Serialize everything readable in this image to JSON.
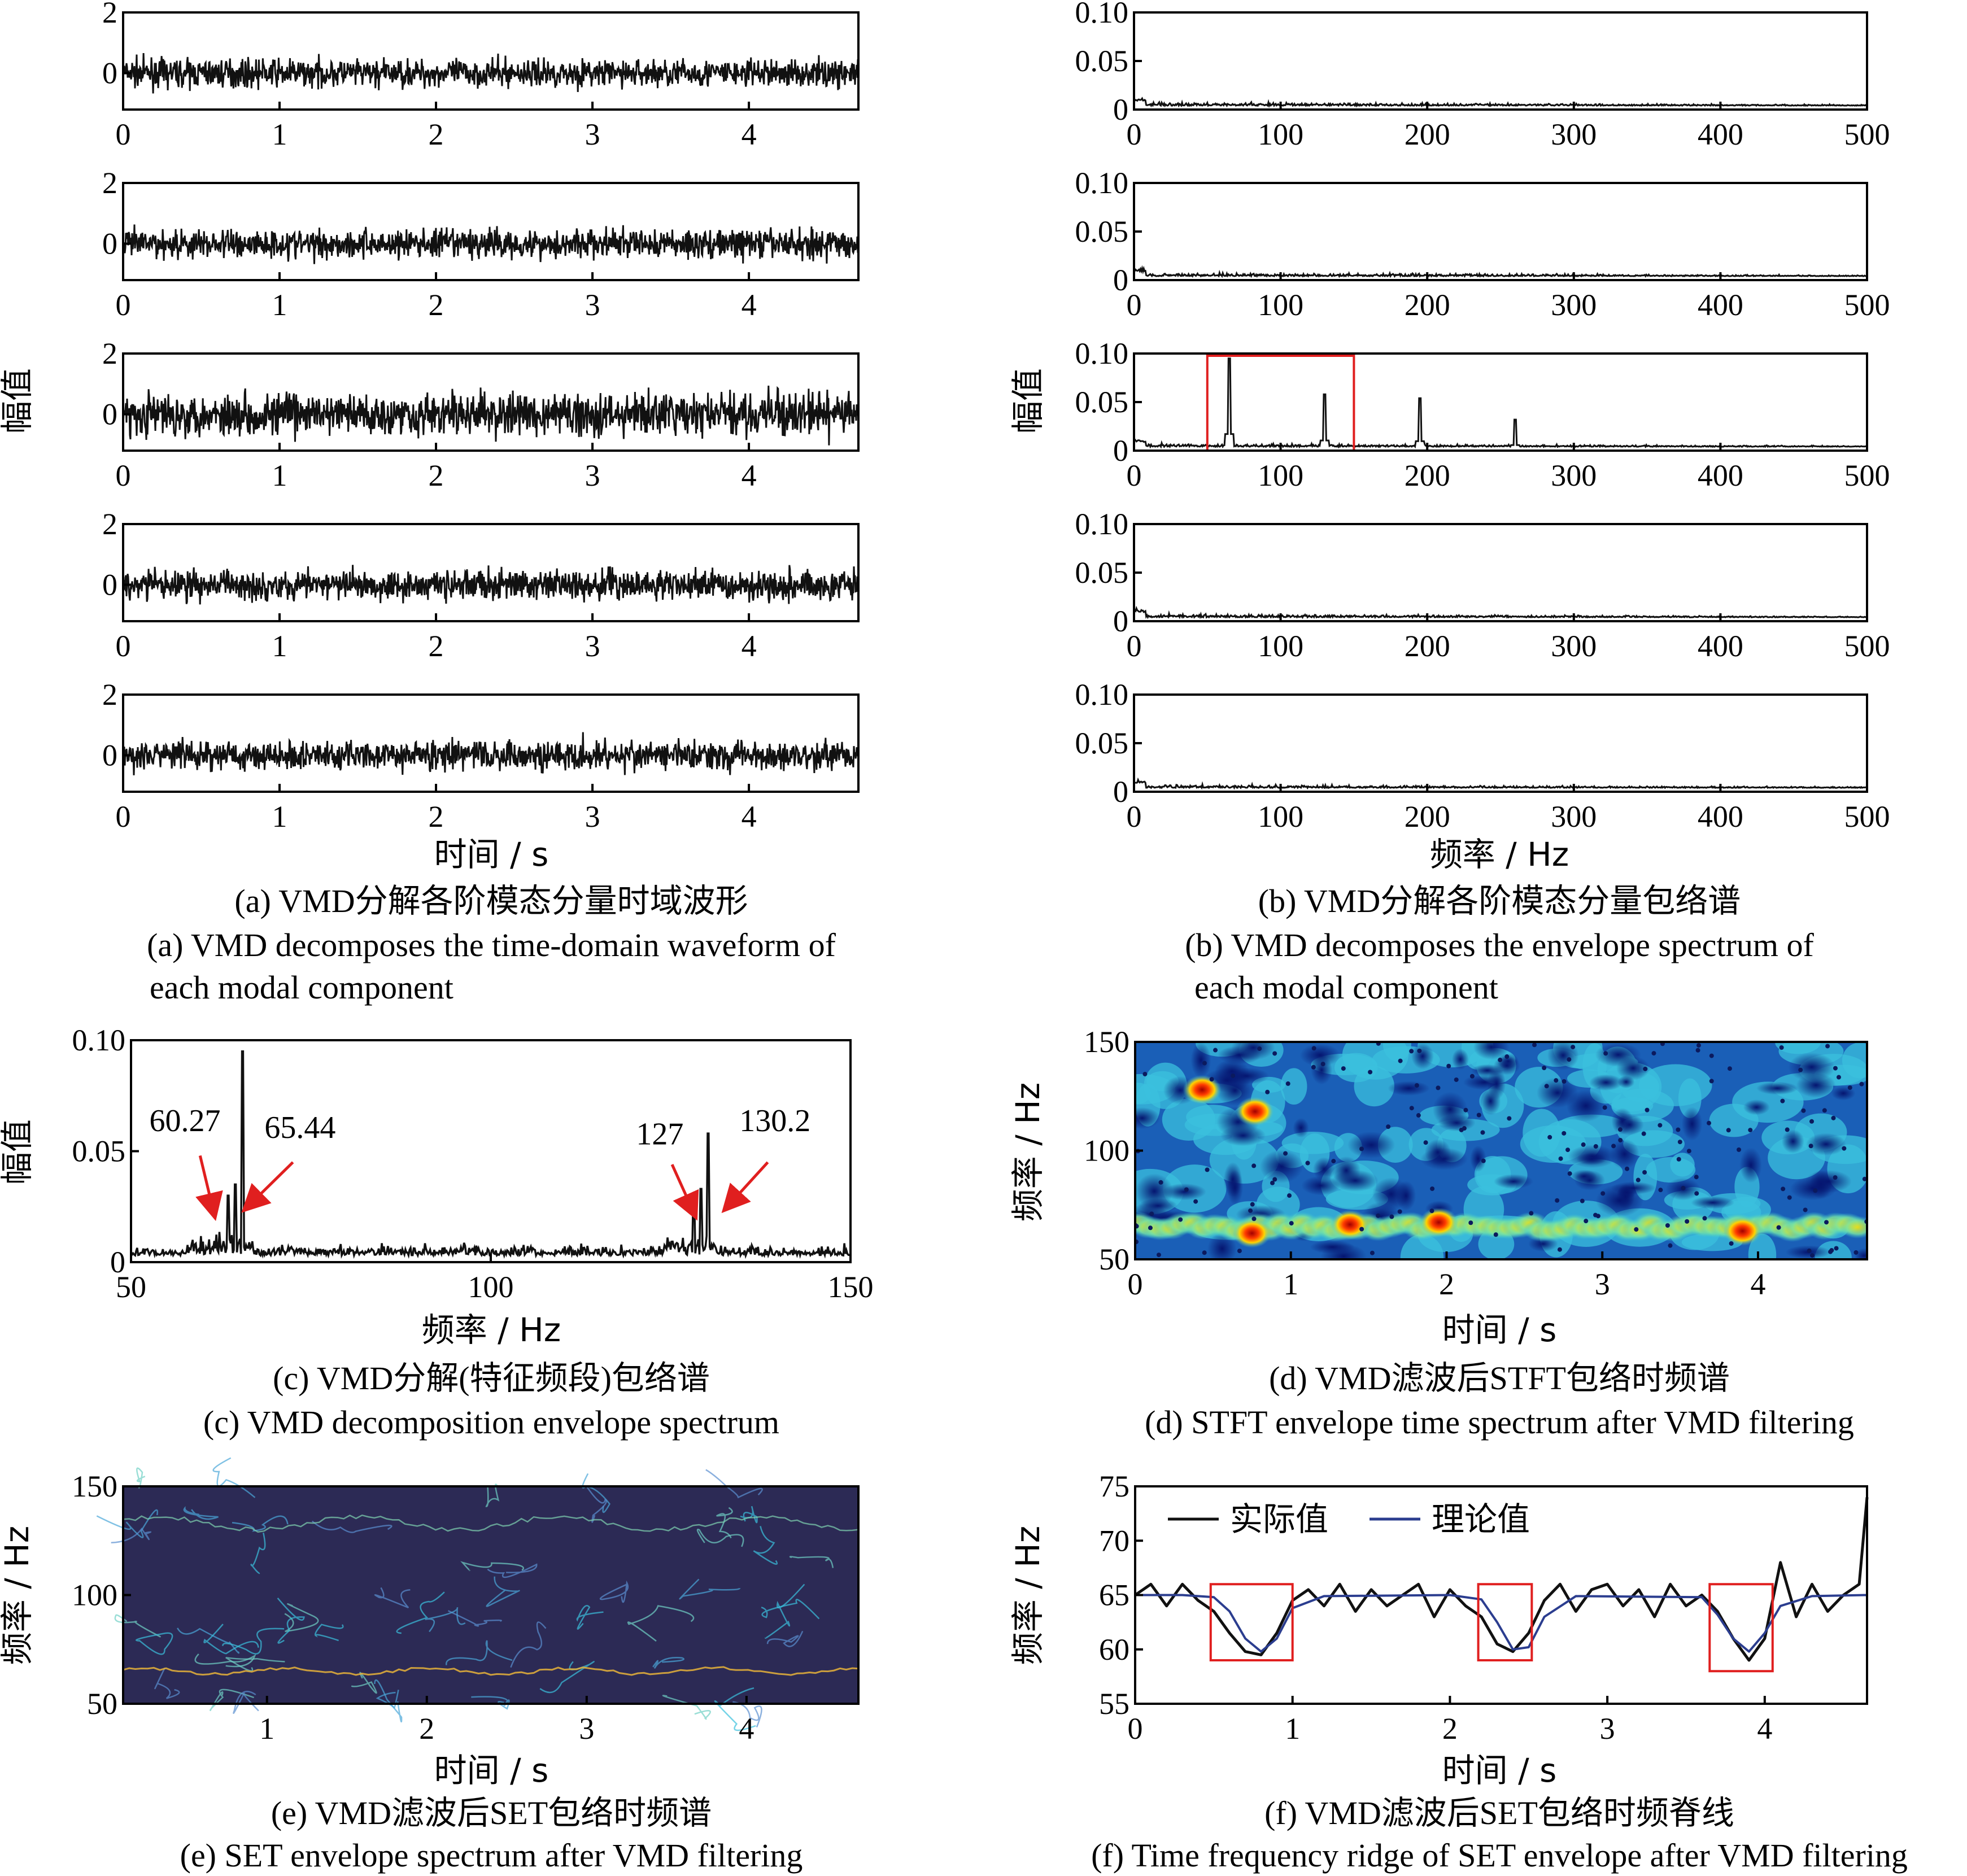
{
  "figure": {
    "a": {
      "caption_cn": "(a) VMD分解各阶模态分量时域波形",
      "caption_en": [
        "(a) VMD decomposes the time-domain waveform of",
        "each modal component"
      ],
      "ylabel": "幅值",
      "xlabel": "时间 / s"
    },
    "b": {
      "caption_cn": "(b) VMD分解各阶模态分量包络谱",
      "caption_en": [
        "(b) VMD decomposes the envelope spectrum of",
        "each modal component"
      ],
      "ylabel": "幅值",
      "xlabel": "频率 / Hz"
    },
    "c": {
      "caption_cn": "(c) VMD分解(特征频段)包络谱",
      "caption_en": [
        "(c) VMD decomposition envelope spectrum"
      ]
    },
    "d": {
      "caption_cn": "(d) VMD滤波后STFT包络时频谱",
      "caption_en": [
        "(d) STFT envelope time spectrum after VMD filtering"
      ]
    },
    "e": {
      "caption_cn": "(e) VMD滤波后SET包络时频谱",
      "caption_en": [
        "(e) SET envelope spectrum after VMD filtering"
      ]
    },
    "f": {
      "caption_cn": "(f) VMD滤波后SET包络时频脊线",
      "caption_en": [
        "(f) Time frequency ridge of SET envelope after VMD filtering"
      ]
    }
  },
  "colors": {
    "axis": "#000000",
    "signal": "#111111",
    "highlight_box": "#e01f1f",
    "arrow": "#e01f1f",
    "theory_line": "#2b3d8f",
    "set_background": "#2c2a55"
  },
  "chart_data": [
    {
      "id": "a",
      "type": "line",
      "subplots": 5,
      "description_values": {
        "x_range": [
          0,
          4.7
        ],
        "y_range": [
          -1.2,
          2.0
        ]
      },
      "xticks": [
        0,
        1,
        2,
        3,
        4
      ],
      "yticks": [
        0,
        2
      ],
      "series": [
        {
          "mode": 1,
          "amplitude": 0.65
        },
        {
          "mode": 2,
          "amplitude": 0.7
        },
        {
          "mode": 3,
          "amplitude": 1.0
        },
        {
          "mode": 4,
          "amplitude": 0.7
        },
        {
          "mode": 5,
          "amplitude": 0.7
        }
      ],
      "xlabel": "时间 / s",
      "ylabel": "幅值"
    },
    {
      "id": "b",
      "type": "line",
      "subplots": 5,
      "xlim": [
        0,
        500
      ],
      "ylim": [
        0,
        0.1
      ],
      "xticks": [
        0,
        100,
        200,
        300,
        400,
        500
      ],
      "yticks": [
        "0",
        "0.05",
        "0.10"
      ],
      "peaks_mode3": [
        {
          "x": 65,
          "y": 0.095
        },
        {
          "x": 130,
          "y": 0.058
        },
        {
          "x": 195,
          "y": 0.054
        },
        {
          "x": 260,
          "y": 0.032
        }
      ],
      "highlight_mode3": {
        "x": [
          50,
          150
        ],
        "y": [
          0,
          0.1
        ]
      },
      "noise_floor": 0.008,
      "xlabel": "频率 / Hz",
      "ylabel": "幅值"
    },
    {
      "id": "c",
      "type": "line",
      "xlim": [
        50,
        150
      ],
      "ylim": [
        0,
        0.1
      ],
      "xticks": [
        50,
        100,
        150
      ],
      "yticks": [
        "0",
        "0.05",
        "0.10"
      ],
      "peaks": [
        {
          "x": 65.44,
          "y": 0.095
        },
        {
          "x": 64.5,
          "y": 0.035
        },
        {
          "x": 63.5,
          "y": 0.03
        },
        {
          "x": 130.2,
          "y": 0.058
        },
        {
          "x": 129.2,
          "y": 0.033
        },
        {
          "x": 128.2,
          "y": 0.03
        }
      ],
      "annotations": [
        {
          "label": "60.27",
          "x": 60.27
        },
        {
          "label": "65.44",
          "x": 65.44
        },
        {
          "label": "127",
          "x": 127
        },
        {
          "label": "130.2",
          "x": 130.2
        }
      ],
      "xlabel": "频率 / Hz",
      "ylabel": "幅值"
    },
    {
      "id": "d",
      "type": "heatmap",
      "xlim": [
        0,
        4.7
      ],
      "ylim": [
        50,
        150
      ],
      "xticks": [
        0,
        1,
        2,
        3,
        4
      ],
      "yticks": [
        50,
        100,
        150
      ],
      "hot_band_hz": 65,
      "hot_spots": [
        {
          "t": 0.43,
          "f": 128
        },
        {
          "t": 0.75,
          "f": 62
        },
        {
          "t": 1.38,
          "f": 66
        },
        {
          "t": 1.95,
          "f": 67
        },
        {
          "t": 3.9,
          "f": 63
        },
        {
          "t": 0.77,
          "f": 118
        }
      ],
      "xlabel": "时间 / s",
      "ylabel": "频率 / Hz"
    },
    {
      "id": "e",
      "type": "heatmap",
      "xlim": [
        0.1,
        4.7
      ],
      "ylim": [
        50,
        150
      ],
      "xticks": [
        1,
        2,
        3,
        4
      ],
      "yticks": [
        50,
        100,
        150
      ],
      "ridge_hz": 65,
      "xlabel": "时间 / s",
      "ylabel": "频率 / Hz"
    },
    {
      "id": "f",
      "type": "line",
      "xlim": [
        0,
        4.65
      ],
      "ylim": [
        55,
        75
      ],
      "xticks": [
        0,
        1,
        2,
        3,
        4
      ],
      "yticks": [
        55,
        60,
        65,
        70,
        75
      ],
      "series": [
        {
          "name": "实际值",
          "color": "#111111",
          "x": [
            0,
            0.1,
            0.2,
            0.3,
            0.4,
            0.5,
            0.6,
            0.7,
            0.8,
            0.9,
            1.0,
            1.1,
            1.2,
            1.3,
            1.4,
            1.5,
            1.6,
            1.7,
            1.8,
            1.9,
            2.0,
            2.1,
            2.2,
            2.3,
            2.4,
            2.5,
            2.6,
            2.7,
            2.8,
            2.9,
            3.0,
            3.1,
            3.2,
            3.3,
            3.4,
            3.5,
            3.6,
            3.7,
            3.8,
            3.9,
            4.0,
            4.1,
            4.2,
            4.3,
            4.4,
            4.5,
            4.6,
            4.65
          ],
          "y": [
            65,
            66,
            64,
            66,
            64.5,
            63.5,
            61.5,
            59.8,
            59.5,
            61.5,
            64.5,
            65.5,
            64,
            66,
            63.5,
            65.5,
            64,
            65,
            66,
            63,
            65.5,
            64,
            63,
            60.5,
            59.8,
            61.5,
            64.5,
            66,
            63.5,
            65.5,
            66,
            64,
            65.5,
            63,
            66,
            64,
            65,
            63.5,
            61,
            59,
            61,
            68,
            63,
            66,
            63.5,
            65,
            66,
            74
          ]
        },
        {
          "name": "理论值",
          "color": "#2b3d8f",
          "x": [
            0,
            0.3,
            0.5,
            0.6,
            0.7,
            0.8,
            0.9,
            1.0,
            1.2,
            2.0,
            2.2,
            2.3,
            2.4,
            2.5,
            2.6,
            2.8,
            3.6,
            3.7,
            3.8,
            3.9,
            4.0,
            4.1,
            4.3,
            4.65
          ],
          "y": [
            65,
            65,
            64.8,
            63.5,
            61,
            59.8,
            61,
            63.8,
            64.9,
            65,
            64.6,
            62.5,
            60,
            60.2,
            63,
            64.9,
            64.8,
            63.2,
            61,
            59.8,
            61.5,
            64,
            64.9,
            65
          ]
        }
      ],
      "highlight_boxes": [
        {
          "x": [
            0.48,
            1.0
          ],
          "y": [
            59,
            66
          ]
        },
        {
          "x": [
            2.18,
            2.52
          ],
          "y": [
            59,
            66
          ]
        },
        {
          "x": [
            3.65,
            4.05
          ],
          "y": [
            58,
            66
          ]
        }
      ],
      "legend": [
        "实际值",
        "理论值"
      ],
      "xlabel": "时间 / s",
      "ylabel": "频率 / Hz"
    }
  ]
}
